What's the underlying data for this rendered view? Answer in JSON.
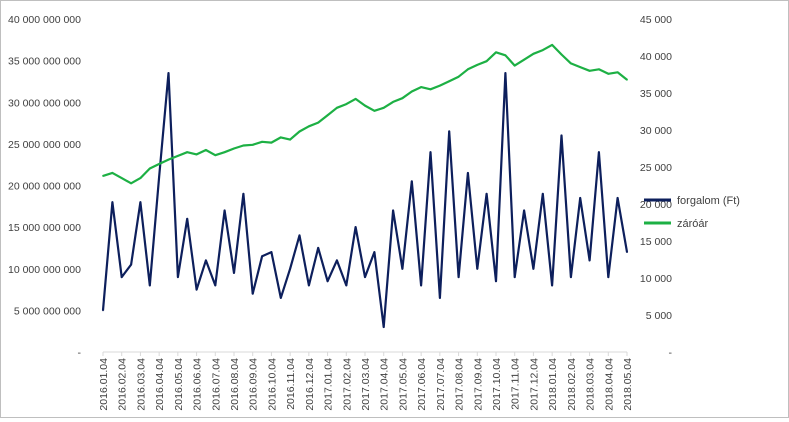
{
  "chart_data": {
    "type": "line",
    "dual_axis": true,
    "x_tick_labels": [
      "2016.01.04",
      "2016.02.04",
      "2016.03.04",
      "2016.04.04",
      "2016.05.04",
      "2016.06.04",
      "2016.07.04",
      "2016.08.04",
      "2016.09.04",
      "2016.10.04",
      "2016.11.04",
      "2016.12.04",
      "2017.01.04",
      "2017.02.04",
      "2017.03.04",
      "2017.04.04",
      "2017.05.04",
      "2017.06.04",
      "2017.07.04",
      "2017.08.04",
      "2017.09.04",
      "2017.10.04",
      "2017.11.04",
      "2017.12.04",
      "2018.01.04",
      "2018.02.04",
      "2018.03.04",
      "2018.04.04",
      "2018.05.04"
    ],
    "y_left": {
      "ylim": [
        0,
        40000000000
      ],
      "tick_labels": [
        "-",
        "5 000 000 000",
        "10 000 000 000",
        "15 000 000 000",
        "20 000 000 000",
        "25 000 000 000",
        "30 000 000 000",
        "35 000 000 000",
        "40 000 000 000"
      ]
    },
    "y_right": {
      "ylim": [
        0,
        45000
      ],
      "tick_labels": [
        "-",
        "5 000",
        "10 000",
        "15 000",
        "20 000",
        "25 000",
        "30 000",
        "35 000",
        "40 000",
        "45 000"
      ]
    },
    "grid": "none",
    "legend_position": "right",
    "series": [
      {
        "name": "forgalom (Ft)",
        "axis": "left",
        "color": "#0d1f5c",
        "x": [
          0,
          0.5,
          1,
          1.5,
          2,
          2.5,
          3,
          3.5,
          4,
          4.5,
          5,
          5.5,
          6,
          6.5,
          7,
          7.5,
          8,
          8.5,
          9,
          9.5,
          10,
          10.5,
          11,
          11.5,
          12,
          12.5,
          13,
          13.5,
          14,
          14.5,
          15,
          15.5,
          16,
          16.5,
          17,
          17.5,
          18,
          18.5,
          19,
          19.5,
          20,
          20.5,
          21,
          21.5,
          22,
          22.5,
          23,
          23.5,
          24,
          24.5,
          25,
          25.5,
          26,
          26.5,
          27,
          27.5,
          28
        ],
        "values": [
          5000000000,
          18000000000,
          9000000000,
          10500000000,
          18000000000,
          8000000000,
          21000000000,
          33500000000,
          9000000000,
          16000000000,
          7500000000,
          11000000000,
          8000000000,
          17000000000,
          9500000000,
          19000000000,
          7000000000,
          11500000000,
          12000000000,
          6500000000,
          10000000000,
          14000000000,
          8000000000,
          12500000000,
          8500000000,
          11000000000,
          8000000000,
          15000000000,
          9000000000,
          12000000000,
          3000000000,
          17000000000,
          10000000000,
          20500000000,
          8000000000,
          24000000000,
          6500000000,
          26500000000,
          9000000000,
          21500000000,
          10000000000,
          19000000000,
          8500000000,
          33500000000,
          9000000000,
          17000000000,
          10000000000,
          19000000000,
          8000000000,
          26000000000,
          9000000000,
          18500000000,
          11000000000,
          24000000000,
          9000000000,
          18500000000,
          12000000000
        ]
      },
      {
        "name": "záróár",
        "axis": "right",
        "color": "#1db044",
        "x": [
          0,
          0.5,
          1,
          1.5,
          2,
          2.5,
          3,
          3.5,
          4,
          4.5,
          5,
          5.5,
          6,
          6.5,
          7,
          7.5,
          8,
          8.5,
          9,
          9.5,
          10,
          10.5,
          11,
          11.5,
          12,
          12.5,
          13,
          13.5,
          14,
          14.5,
          15,
          15.5,
          16,
          16.5,
          17,
          17.5,
          18,
          18.5,
          19,
          19.5,
          20,
          20.5,
          21,
          21.5,
          22,
          22.5,
          23,
          23.5,
          24,
          24.5,
          25,
          25.5,
          26,
          26.5,
          27,
          27.5,
          28
        ],
        "values": [
          23800,
          24200,
          23500,
          22800,
          23500,
          24800,
          25400,
          26000,
          26500,
          27000,
          26700,
          27300,
          26600,
          27000,
          27500,
          27900,
          28000,
          28400,
          28300,
          29000,
          28700,
          29800,
          30500,
          31000,
          32000,
          33000,
          33500,
          34200,
          33300,
          32600,
          33000,
          33800,
          34300,
          35200,
          35800,
          35500,
          36000,
          36600,
          37200,
          38200,
          38800,
          39300,
          40500,
          40100,
          38700,
          39500,
          40300,
          40800,
          41500,
          40200,
          39000,
          38500,
          38000,
          38200,
          37600,
          37800,
          36800
        ]
      }
    ]
  }
}
